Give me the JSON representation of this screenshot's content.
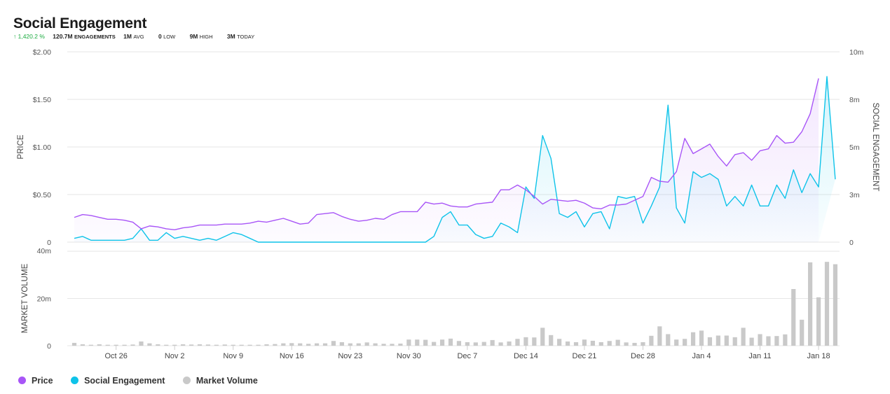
{
  "page": {
    "title": "Social Engagement",
    "stats": {
      "change": "↑ 1,420.2 %",
      "engagements_value": "120.7M",
      "engagements_label": "ENGAGEMENTS",
      "avg_value": "1M",
      "avg_label": "AVG",
      "low_value": "0",
      "low_label": "LOW",
      "high_value": "9M",
      "high_label": "HIGH",
      "today_value": "3M",
      "today_label": "TODAY"
    },
    "legend": [
      {
        "label": "Price",
        "color": "#a855f7"
      },
      {
        "label": "Social Engagement",
        "color": "#0ec3e9"
      },
      {
        "label": "Market Volume",
        "color": "#c9c9c9"
      }
    ]
  },
  "chart_data": [
    {
      "type": "line",
      "ylabel": "PRICE",
      "y2label": "SOCIAL ENGAGEMENT",
      "ylim": [
        0,
        2.0
      ],
      "y2lim": [
        0,
        10
      ],
      "yticks": [
        0,
        0.5,
        1.0,
        1.5,
        2.0
      ],
      "ytick_labels": [
        "0",
        "$0.50",
        "$1.00",
        "$1.50",
        "$2.00"
      ],
      "y2ticks": [
        0,
        2.5,
        5,
        7.5,
        10
      ],
      "y2tick_labels": [
        "0",
        "3m",
        "5m",
        "8m",
        "10m"
      ],
      "x_range": [
        0,
        90
      ],
      "xticks": [
        5,
        12,
        19,
        26,
        33,
        40,
        47,
        54,
        61,
        68,
        75,
        82,
        89
      ],
      "xtick_labels": [
        "Oct 26",
        "Nov 2",
        "Nov 9",
        "Nov 16",
        "Nov 23",
        "Nov 30",
        "Dec 7",
        "Dec 14",
        "Dec 21",
        "Dec 28",
        "Jan 4",
        "Jan 11",
        "Jan 18"
      ],
      "grid": true,
      "series": [
        {
          "name": "Price",
          "axis": "left",
          "color": "#a855f7",
          "values": [
            0.26,
            0.29,
            0.28,
            0.26,
            0.24,
            0.24,
            0.23,
            0.21,
            0.14,
            0.17,
            0.16,
            0.14,
            0.13,
            0.15,
            0.16,
            0.18,
            0.18,
            0.18,
            0.19,
            0.19,
            0.19,
            0.2,
            0.22,
            0.21,
            0.23,
            0.25,
            0.22,
            0.19,
            0.2,
            0.29,
            0.3,
            0.31,
            0.27,
            0.24,
            0.22,
            0.23,
            0.25,
            0.24,
            0.29,
            0.32,
            0.32,
            0.32,
            0.42,
            0.4,
            0.41,
            0.38,
            0.37,
            0.37,
            0.4,
            0.41,
            0.42,
            0.55,
            0.55,
            0.6,
            0.55,
            0.48,
            0.4,
            0.45,
            0.44,
            0.43,
            0.44,
            0.41,
            0.36,
            0.35,
            0.39,
            0.39,
            0.4,
            0.44,
            0.48,
            0.68,
            0.64,
            0.63,
            0.74,
            1.09,
            0.93,
            0.98,
            1.03,
            0.9,
            0.8,
            0.92,
            0.94,
            0.86,
            0.96,
            0.98,
            1.12,
            1.04,
            1.05,
            1.16,
            1.35,
            1.72
          ]
        },
        {
          "name": "Social Engagement",
          "axis": "right",
          "color": "#0ec3e9",
          "values": [
            0.2,
            0.3,
            0.1,
            0.1,
            0.1,
            0.1,
            0.1,
            0.2,
            0.7,
            0.1,
            0.1,
            0.5,
            0.2,
            0.3,
            0.2,
            0.1,
            0.2,
            0.1,
            0.3,
            0.5,
            0.4,
            0.2,
            0,
            0,
            0,
            0,
            0,
            0,
            0,
            0,
            0,
            0,
            0,
            0,
            0,
            0,
            0,
            0,
            0,
            0,
            0,
            0,
            0,
            0.3,
            1.3,
            1.6,
            0.9,
            0.9,
            0.4,
            0.2,
            0.3,
            1.0,
            0.8,
            0.5,
            2.9,
            2.3,
            5.6,
            4.4,
            1.5,
            1.3,
            1.6,
            0.8,
            1.5,
            1.6,
            0.7,
            2.4,
            2.3,
            2.4,
            1.0,
            1.9,
            2.9,
            7.2,
            1.8,
            1.0,
            3.7,
            3.4,
            3.6,
            3.3,
            1.9,
            2.4,
            1.9,
            3.0,
            1.9,
            1.9,
            3.0,
            2.3,
            3.8,
            2.6,
            3.6,
            2.9,
            8.7,
            3.3
          ]
        }
      ]
    },
    {
      "type": "bar",
      "name": "Market Volume",
      "ylabel": "MARKET VOLUME",
      "ylim": [
        0,
        40
      ],
      "yticks": [
        0,
        20,
        40
      ],
      "ytick_labels": [
        "0",
        "20m",
        "40m"
      ],
      "color": "#c9c9c9",
      "values": [
        1.2,
        0.6,
        0.4,
        0.6,
        0.4,
        0.4,
        0.4,
        0.5,
        1.8,
        1.0,
        0.6,
        0.4,
        0.4,
        0.6,
        0.5,
        0.6,
        0.5,
        0.4,
        0.5,
        0.4,
        0.4,
        0.4,
        0.4,
        0.6,
        0.7,
        1.0,
        1.1,
        1.0,
        0.8,
        1.0,
        1.0,
        2.0,
        1.5,
        1.0,
        1.0,
        1.4,
        1.0,
        0.8,
        0.8,
        0.9,
        2.6,
        2.6,
        2.5,
        1.6,
        2.6,
        3.0,
        2.0,
        1.5,
        1.4,
        1.6,
        2.4,
        1.4,
        1.8,
        2.9,
        3.6,
        3.5,
        7.6,
        4.5,
        2.9,
        1.8,
        1.5,
        2.6,
        2.1,
        1.5,
        2.0,
        2.5,
        1.4,
        1.2,
        1.5,
        4.2,
        8.2,
        4.9,
        2.6,
        2.9,
        5.7,
        6.4,
        3.6,
        4.3,
        4.3,
        3.6,
        7.6,
        3.4,
        4.9,
        4.0,
        4.1,
        4.8,
        24.0,
        11.0,
        35.3,
        20.5,
        35.5,
        34.5
      ]
    }
  ]
}
